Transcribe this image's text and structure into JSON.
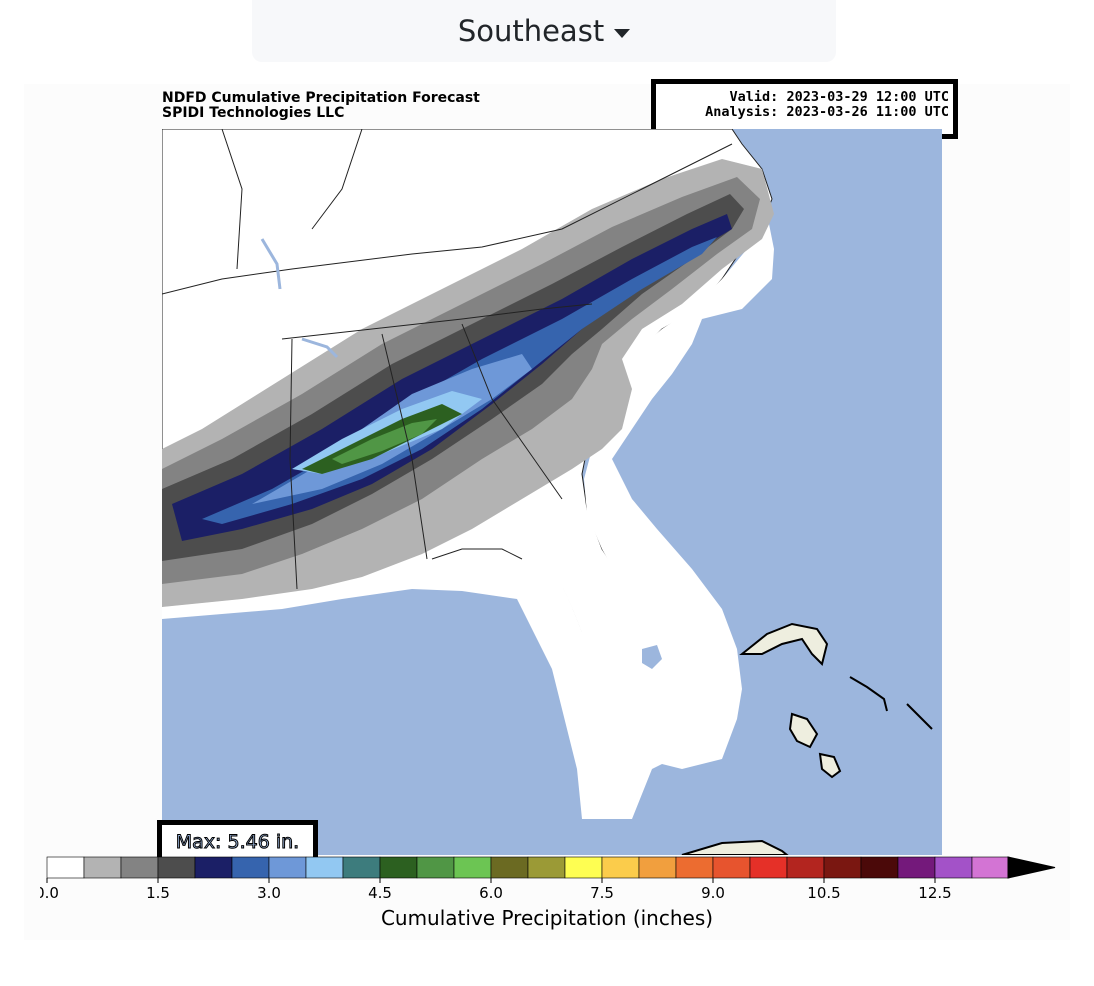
{
  "region_selector": {
    "selected": "Southeast"
  },
  "map": {
    "title_line1": "NDFD Cumulative Precipitation Forecast",
    "title_line2": "SPIDI Technologies LLC",
    "valid": "Valid: 2023-03-29 12:00 UTC",
    "analysis": "Analysis: 2023-03-26 11:00 UTC",
    "max_label": "Max: 5.46 in.",
    "ocean_color": "#9cb6dd",
    "land_color": "#ffffff"
  },
  "colorbar": {
    "label": "Cumulative Precipitation (inches)",
    "ticks": [
      "0.0",
      "1.5",
      "3.0",
      "4.5",
      "6.0",
      "7.5",
      "9.0",
      "10.5",
      "12.5"
    ],
    "colors": [
      "#ffffff",
      "#b3b3b3",
      "#838383",
      "#4d4d4d",
      "#1b1f66",
      "#3664ae",
      "#6e98d8",
      "#92c8f2",
      "#3d7c7d",
      "#2c6020",
      "#509645",
      "#6cc553",
      "#6b6a22",
      "#9b9a36",
      "#fefe52",
      "#fbcc4b",
      "#f19f3e",
      "#ec6c30",
      "#e7542e",
      "#e53028",
      "#b3251f",
      "#7a1711",
      "#4b0909",
      "#74197b",
      "#a352c8",
      "#d374d4"
    ]
  }
}
